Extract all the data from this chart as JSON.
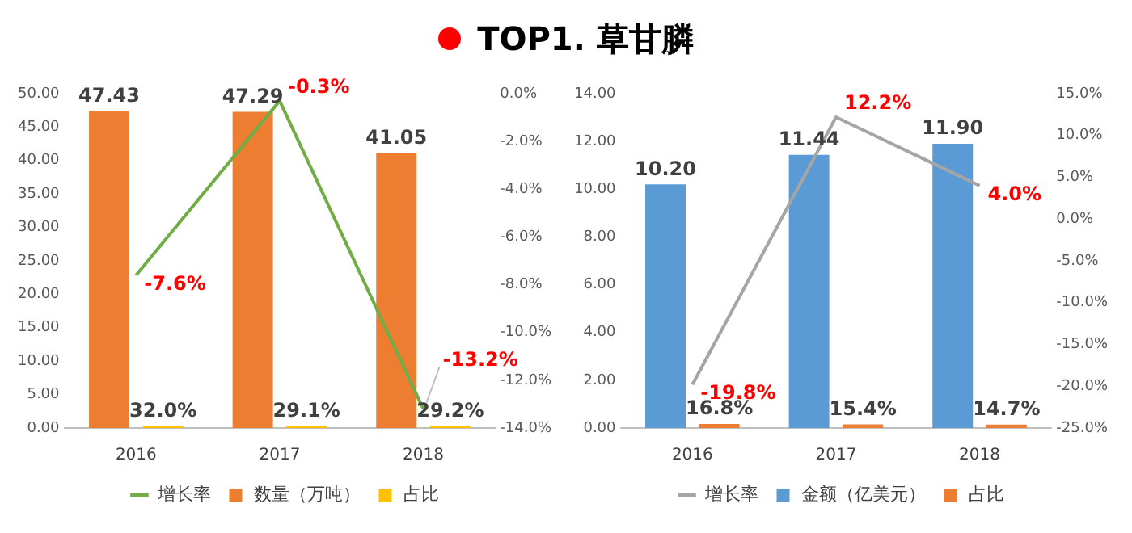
{
  "chart_data": [
    {
      "type": "bar",
      "title": "TOP1. 草甘膦",
      "categories": [
        "2016",
        "2017",
        "2018"
      ],
      "legend": "bottom",
      "grid": false,
      "marker": "none",
      "ylim": [
        0,
        50
      ],
      "yticks": [
        {
          "value": 0,
          "label": "0.00"
        },
        {
          "value": 5,
          "label": "5.00"
        },
        {
          "value": 10,
          "label": "10.00"
        },
        {
          "value": 15,
          "label": "15.00"
        },
        {
          "value": 20,
          "label": "20.00"
        },
        {
          "value": 25,
          "label": "25.00"
        },
        {
          "value": 30,
          "label": "30.00"
        },
        {
          "value": 35,
          "label": "35.00"
        },
        {
          "value": 40,
          "label": "40.00"
        },
        {
          "value": 45,
          "label": "45.00"
        },
        {
          "value": 50,
          "label": "50.00"
        }
      ],
      "y2lim": [
        -14,
        0
      ],
      "y2ticks": [
        {
          "value": 0,
          "label": "0.0%"
        },
        {
          "value": -2,
          "label": "-2.0%"
        },
        {
          "value": -4,
          "label": "-4.0%"
        },
        {
          "value": -6,
          "label": "-6.0%"
        },
        {
          "value": -8,
          "label": "-8.0%"
        },
        {
          "value": -10,
          "label": "-10.0%"
        },
        {
          "value": -12,
          "label": "-12.0%"
        },
        {
          "value": -14,
          "label": "-14.0%"
        }
      ],
      "series": [
        {
          "name": "数量（万吨）",
          "color": "#ed7d31",
          "values": [
            47.43,
            47.29,
            41.05
          ],
          "value_labels": [
            "47.43",
            "47.29",
            "41.05"
          ]
        },
        {
          "name": "占比",
          "color": "#ffc000",
          "values": [
            0.32,
            0.291,
            0.292
          ],
          "value_labels": [
            "32.0%",
            "29.1%",
            "29.2%"
          ]
        },
        {
          "name": "增长率",
          "type": "line",
          "axis": "y2",
          "color": "#70ad47",
          "values": [
            -7.6,
            -0.3,
            -13.2
          ],
          "value_labels": [
            "-7.6%",
            "-0.3%",
            "-13.2%"
          ]
        }
      ]
    },
    {
      "type": "bar",
      "categories": [
        "2016",
        "2017",
        "2018"
      ],
      "legend": "bottom",
      "grid": false,
      "marker": "none",
      "ylim": [
        0,
        14
      ],
      "yticks": [
        {
          "value": 0,
          "label": "0.00"
        },
        {
          "value": 2,
          "label": "2.00"
        },
        {
          "value": 4,
          "label": "4.00"
        },
        {
          "value": 6,
          "label": "6.00"
        },
        {
          "value": 8,
          "label": "8.00"
        },
        {
          "value": 10,
          "label": "10.00"
        },
        {
          "value": 12,
          "label": "12.00"
        },
        {
          "value": 14,
          "label": "14.00"
        }
      ],
      "y2lim": [
        -25,
        15
      ],
      "y2ticks": [
        {
          "value": 15,
          "label": "15.0%"
        },
        {
          "value": 10,
          "label": "10.0%"
        },
        {
          "value": 5,
          "label": "5.0%"
        },
        {
          "value": 0,
          "label": "0.0%"
        },
        {
          "value": -5,
          "label": "-5.0%"
        },
        {
          "value": -10,
          "label": "-10.0%"
        },
        {
          "value": -15,
          "label": "-15.0%"
        },
        {
          "value": -20,
          "label": "-20.0%"
        },
        {
          "value": -25,
          "label": "-25.0%"
        }
      ],
      "series": [
        {
          "name": "金额（亿美元）",
          "color": "#5b9bd5",
          "values": [
            10.2,
            11.44,
            11.9
          ],
          "value_labels": [
            "10.20",
            "11.44",
            "11.90"
          ]
        },
        {
          "name": "占比",
          "color": "#ed7d31",
          "values": [
            0.168,
            0.154,
            0.147
          ],
          "value_labels": [
            "16.8%",
            "15.4%",
            "14.7%"
          ]
        },
        {
          "name": "增长率",
          "type": "line",
          "axis": "y2",
          "color": "#a5a5a5",
          "values": [
            -19.8,
            12.2,
            4.0
          ],
          "value_labels": [
            "-19.8%",
            "12.2%",
            "4.0%"
          ]
        }
      ]
    }
  ]
}
